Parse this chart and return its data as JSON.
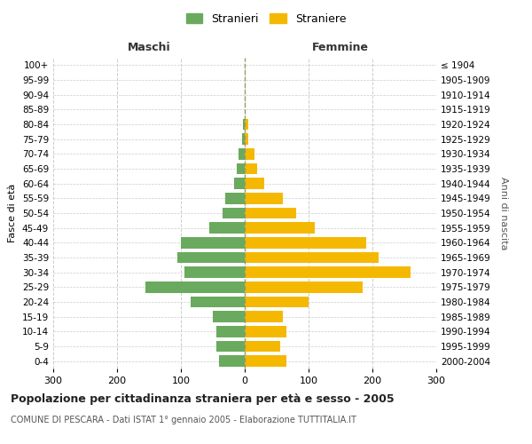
{
  "age_groups": [
    "0-4",
    "5-9",
    "10-14",
    "15-19",
    "20-24",
    "25-29",
    "30-34",
    "35-39",
    "40-44",
    "45-49",
    "50-54",
    "55-59",
    "60-64",
    "65-69",
    "70-74",
    "75-79",
    "80-84",
    "85-89",
    "90-94",
    "95-99",
    "100+"
  ],
  "birth_years": [
    "2000-2004",
    "1995-1999",
    "1990-1994",
    "1985-1989",
    "1980-1984",
    "1975-1979",
    "1970-1974",
    "1965-1969",
    "1960-1964",
    "1955-1959",
    "1950-1954",
    "1945-1949",
    "1940-1944",
    "1935-1939",
    "1930-1934",
    "1925-1929",
    "1920-1924",
    "1915-1919",
    "1910-1914",
    "1905-1909",
    "≤ 1904"
  ],
  "maschi": [
    40,
    45,
    45,
    50,
    85,
    155,
    95,
    105,
    100,
    55,
    35,
    30,
    17,
    12,
    10,
    4,
    3,
    0,
    0,
    0,
    0
  ],
  "femmine": [
    65,
    55,
    65,
    60,
    100,
    185,
    260,
    210,
    190,
    110,
    80,
    60,
    30,
    20,
    15,
    5,
    5,
    0,
    0,
    0,
    0
  ],
  "maschi_color": "#6aaa5e",
  "femmine_color": "#f5b800",
  "title": "Popolazione per cittadinanza straniera per età e sesso - 2005",
  "subtitle": "COMUNE DI PESCARA - Dati ISTAT 1° gennaio 2005 - Elaborazione TUTTITALIA.IT",
  "ylabel_left": "Fasce di età",
  "ylabel_right": "Anni di nascita",
  "xlabel_maschi": "Maschi",
  "xlabel_femmine": "Femmine",
  "legend_maschi": "Stranieri",
  "legend_femmine": "Straniere",
  "xlim": 300,
  "background_color": "#ffffff",
  "grid_color": "#cccccc"
}
